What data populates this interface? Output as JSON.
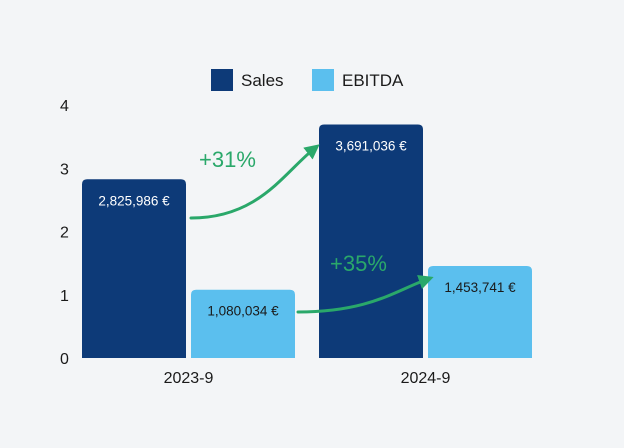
{
  "chart_data": {
    "type": "bar",
    "title": "",
    "xlabel": "",
    "ylabel": "",
    "categories": [
      "2023-9",
      "2024-9"
    ],
    "ylim": [
      0,
      4
    ],
    "yticks": [
      "0",
      "1",
      "2",
      "3",
      "4"
    ],
    "series": [
      {
        "name": "Sales",
        "color": "#0d3a78",
        "values": [
          2.825986,
          3.691036
        ],
        "labels": [
          "2,825,986 €",
          "3,691,036 €"
        ],
        "label_color": "#ffffff"
      },
      {
        "name": "EBITDA",
        "color": "#5bbfee",
        "values": [
          1.080034,
          1.453741
        ],
        "labels": [
          "1,080,034 €",
          "1,453,741 €"
        ],
        "label_color": "#1a1a1a"
      }
    ],
    "legend_position": "top-center",
    "annotations": [
      {
        "series": "Sales",
        "text": "+31%",
        "color": "#2aa86a"
      },
      {
        "series": "EBITDA",
        "text": "+35%",
        "color": "#2aa86a"
      }
    ]
  }
}
